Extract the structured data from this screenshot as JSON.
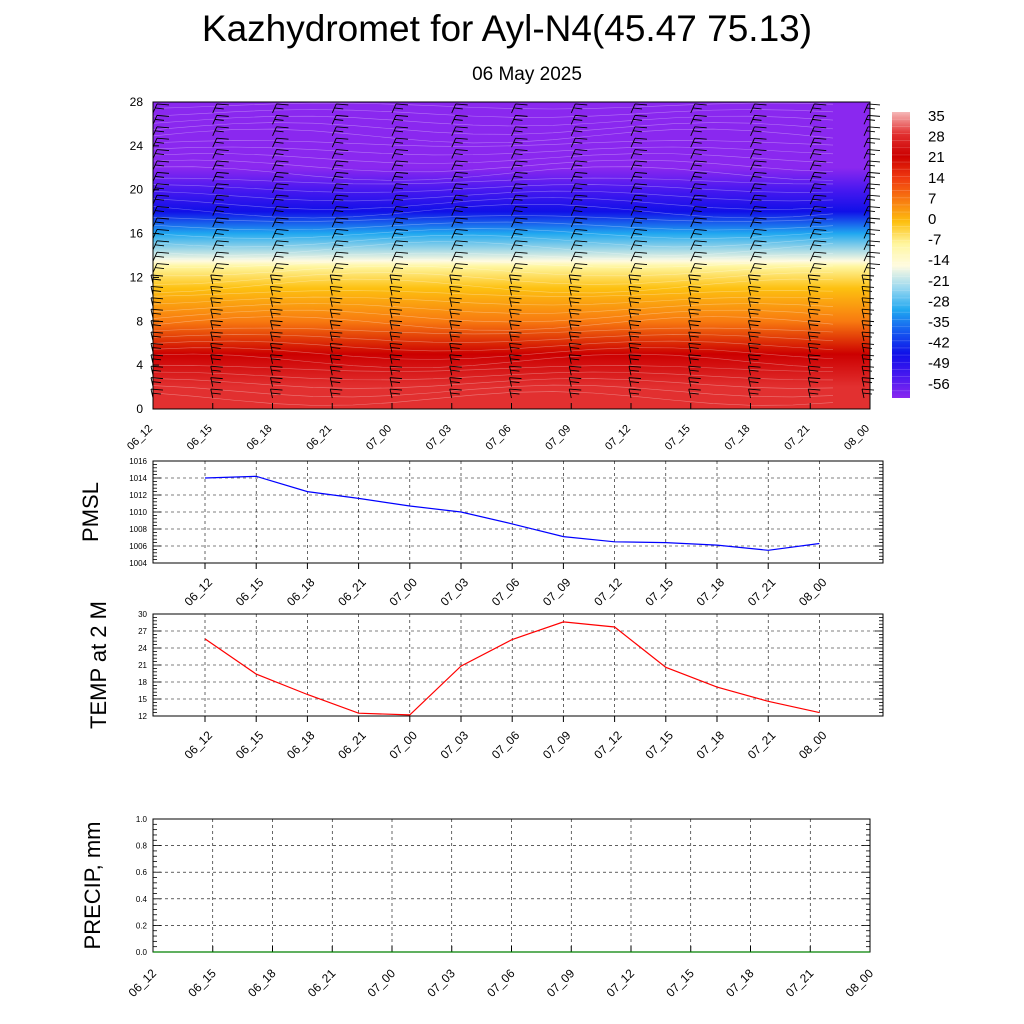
{
  "title": "Kazhydromet for Ayl-N4(45.47 75.13)",
  "subtitle": "06 May 2025",
  "chart_data": [
    {
      "type": "heatmap",
      "description_none": "",
      "x_ticks": [
        "06_12",
        "06_15",
        "06_18",
        "06_21",
        "07_00",
        "07_03",
        "07_06",
        "07_09",
        "07_12",
        "07_15",
        "07_18",
        "07_21",
        "08_00"
      ],
      "y_ticks": [
        "0",
        "4",
        "8",
        "12",
        "16",
        "20",
        "24",
        "28"
      ],
      "ylim": [
        0,
        28
      ],
      "colorbar_labels": [
        "35",
        "28",
        "21",
        "14",
        "7",
        "0",
        "-7",
        "-14",
        "-21",
        "-28",
        "-35",
        "-42",
        "-49",
        "-56"
      ],
      "colorbar_colors": [
        "#f5b8b8",
        "#e23030",
        "#cc0000",
        "#f03a10",
        "#f87a10",
        "#fdc010",
        "#fff6a0",
        "#fffbe0",
        "#9ad8f0",
        "#20a8f0",
        "#1558f0",
        "#1010e8",
        "#4818f0",
        "#8a28ef"
      ],
      "temperature_profile": [
        {
          "height": 0,
          "value": 30
        },
        {
          "height": 2,
          "value": 25
        },
        {
          "height": 5,
          "value": 18
        },
        {
          "height": 8,
          "value": 8
        },
        {
          "height": 11,
          "value": 0
        },
        {
          "height": 13,
          "value": -8
        },
        {
          "height": 13.5,
          "value": -14
        },
        {
          "height": 16,
          "value": -30
        },
        {
          "height": 18,
          "value": -42
        },
        {
          "height": 20,
          "value": -50
        },
        {
          "height": 22,
          "value": -58
        },
        {
          "height": 28,
          "value": -58
        }
      ],
      "wind_barbs": "on",
      "grid": "off"
    },
    {
      "type": "line",
      "ylabel": "PMSL",
      "x": [
        "06_12",
        "06_15",
        "06_18",
        "06_21",
        "07_00",
        "07_03",
        "07_06",
        "07_09",
        "07_12",
        "07_15",
        "07_18",
        "07_21",
        "08_00"
      ],
      "y_ticks": [
        "1004",
        "1006",
        "1008",
        "1010",
        "1012",
        "1014",
        "1016"
      ],
      "ylim": [
        1004,
        1016
      ],
      "series": [
        {
          "values": [
            1014.0,
            1014.2,
            1012.4,
            1011.6,
            1010.7,
            1010.0,
            1008.6,
            1007.1,
            1006.5,
            1006.4,
            1006.1,
            1005.5,
            1006.3
          ],
          "color": "#0000ff"
        }
      ],
      "grid": "dashed"
    },
    {
      "type": "line",
      "ylabel": "TEMP at 2 M",
      "x": [
        "06_12",
        "06_15",
        "06_18",
        "06_21",
        "07_00",
        "07_03",
        "07_06",
        "07_09",
        "07_12",
        "07_15",
        "07_18",
        "07_21",
        "08_00"
      ],
      "y_ticks": [
        "12",
        "15",
        "18",
        "21",
        "24",
        "27",
        "30"
      ],
      "ylim": [
        12,
        30
      ],
      "series": [
        {
          "values": [
            25.6,
            19.4,
            15.8,
            12.5,
            12.2,
            20.8,
            25.5,
            28.6,
            27.7,
            20.6,
            17.1,
            14.6,
            12.6
          ],
          "color": "#ff0000"
        }
      ],
      "grid": "dashed"
    },
    {
      "type": "line",
      "ylabel": "PRECIP, mm",
      "x": [
        "06_12",
        "06_15",
        "06_18",
        "06_21",
        "07_00",
        "07_03",
        "07_06",
        "07_09",
        "07_12",
        "07_15",
        "07_18",
        "07_21",
        "08_00"
      ],
      "y_ticks": [
        "0.0",
        "0.2",
        "0.4",
        "0.6",
        "0.8",
        "1.0"
      ],
      "ylim": [
        0,
        1
      ],
      "series": [
        {
          "values": [
            0,
            0,
            0,
            0,
            0,
            0,
            0,
            0,
            0,
            0,
            0,
            0,
            0
          ],
          "color": "#008000"
        }
      ],
      "grid": "dashed"
    }
  ]
}
